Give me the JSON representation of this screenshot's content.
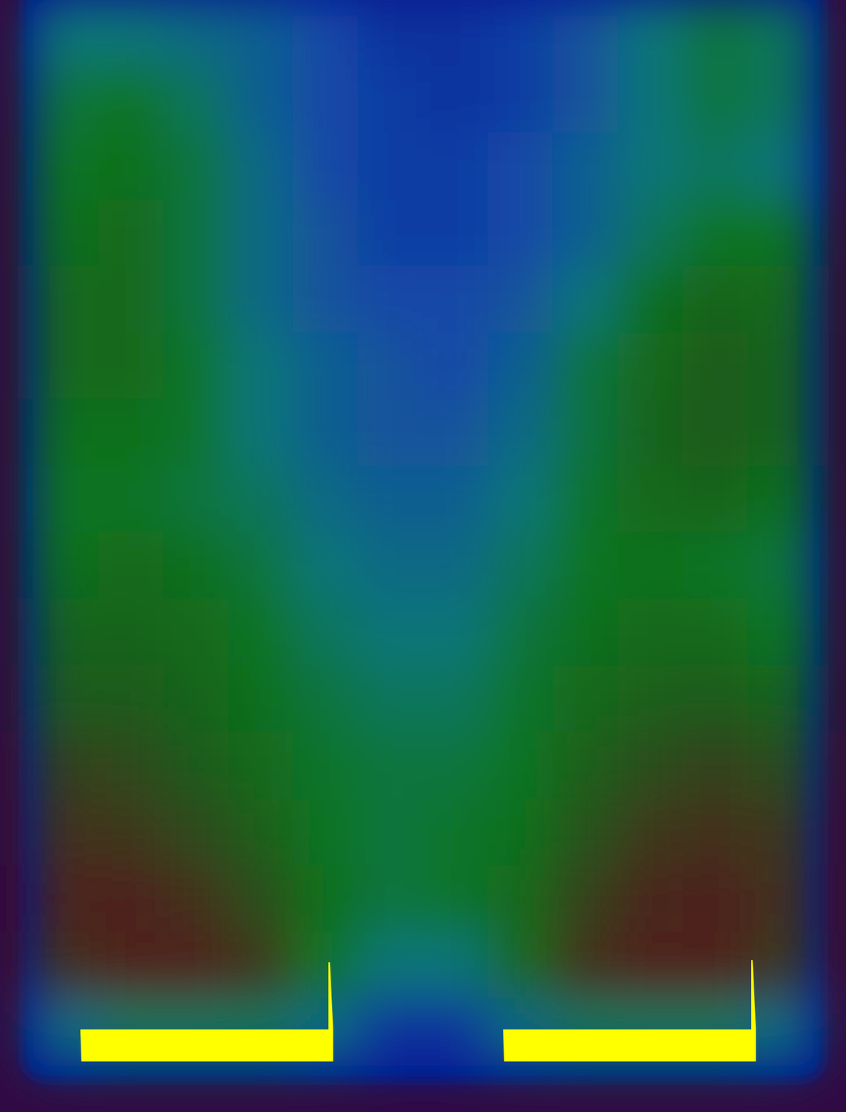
{
  "chart_data": {
    "type": "heatmap",
    "tick_labels": false,
    "color_range": [
      0,
      1
    ],
    "cells": [
      [
        0.45,
        0.45,
        0.4,
        0.35,
        0.25,
        0.15,
        0.15,
        0.2,
        0.3,
        0.45,
        0.55,
        0.5
      ],
      [
        0.55,
        0.6,
        0.5,
        0.35,
        0.25,
        0.2,
        0.15,
        0.2,
        0.3,
        0.45,
        0.55,
        0.5
      ],
      [
        0.6,
        0.62,
        0.55,
        0.4,
        0.25,
        0.2,
        0.2,
        0.25,
        0.35,
        0.45,
        0.5,
        0.45
      ],
      [
        0.62,
        0.65,
        0.55,
        0.4,
        0.3,
        0.2,
        0.2,
        0.25,
        0.35,
        0.5,
        0.6,
        0.6
      ],
      [
        0.65,
        0.65,
        0.55,
        0.4,
        0.3,
        0.25,
        0.25,
        0.3,
        0.45,
        0.62,
        0.68,
        0.65
      ],
      [
        0.65,
        0.65,
        0.58,
        0.45,
        0.35,
        0.3,
        0.25,
        0.35,
        0.55,
        0.65,
        0.72,
        0.68
      ],
      [
        0.62,
        0.62,
        0.58,
        0.45,
        0.35,
        0.3,
        0.3,
        0.4,
        0.55,
        0.68,
        0.72,
        0.68
      ],
      [
        0.6,
        0.6,
        0.55,
        0.5,
        0.4,
        0.35,
        0.35,
        0.45,
        0.58,
        0.65,
        0.68,
        0.62
      ],
      [
        0.62,
        0.65,
        0.62,
        0.55,
        0.45,
        0.4,
        0.4,
        0.5,
        0.6,
        0.62,
        0.6,
        0.55
      ],
      [
        0.68,
        0.68,
        0.65,
        0.6,
        0.5,
        0.45,
        0.45,
        0.55,
        0.62,
        0.65,
        0.65,
        0.6
      ],
      [
        0.72,
        0.72,
        0.68,
        0.62,
        0.55,
        0.5,
        0.5,
        0.58,
        0.65,
        0.7,
        0.72,
        0.68
      ],
      [
        0.78,
        0.76,
        0.72,
        0.65,
        0.58,
        0.55,
        0.55,
        0.6,
        0.7,
        0.75,
        0.78,
        0.75
      ],
      [
        0.82,
        0.8,
        0.76,
        0.7,
        0.6,
        0.55,
        0.58,
        0.62,
        0.74,
        0.8,
        0.82,
        0.8
      ],
      [
        0.85,
        0.85,
        0.82,
        0.75,
        0.62,
        0.55,
        0.58,
        0.65,
        0.78,
        0.84,
        0.85,
        0.82
      ],
      [
        0.82,
        0.88,
        0.88,
        0.8,
        0.6,
        0.45,
        0.45,
        0.65,
        0.82,
        0.88,
        0.86,
        0.8
      ],
      [
        0.4,
        0.5,
        0.5,
        0.5,
        0.4,
        0.15,
        0.15,
        0.4,
        0.5,
        0.5,
        0.5,
        0.4
      ]
    ]
  }
}
